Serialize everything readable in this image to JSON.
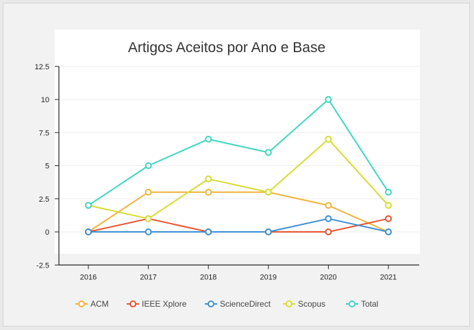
{
  "chart_data": {
    "type": "line",
    "title": "Artigos Aceitos por Ano e Base",
    "xlabel": "",
    "ylabel": "",
    "categories": [
      "2016",
      "2017",
      "2018",
      "2019",
      "2020",
      "2021"
    ],
    "y_ticks": [
      "12.5",
      "10",
      "7.5",
      "5",
      "2.5",
      "0",
      "-2.5"
    ],
    "y_tick_values": [
      12.5,
      10,
      7.5,
      5,
      2.5,
      0,
      -2.5
    ],
    "ylim": [
      -2.5,
      12.5
    ],
    "grid": true,
    "legend_position": "bottom",
    "series": [
      {
        "name": "ACM",
        "color": "#f0b437",
        "values": [
          0,
          3,
          3,
          3,
          2,
          0
        ]
      },
      {
        "name": "IEEE Xplore",
        "color": "#e8522f",
        "values": [
          0,
          1,
          0,
          0,
          0,
          1
        ]
      },
      {
        "name": "ScienceDirect",
        "color": "#3a8fd6",
        "values": [
          0,
          0,
          0,
          0,
          1,
          0
        ]
      },
      {
        "name": "Scopus",
        "color": "#d6dc30",
        "values": [
          2,
          1,
          4,
          3,
          7,
          2
        ]
      },
      {
        "name": "Total",
        "color": "#3dd6c2",
        "values": [
          2,
          5,
          7,
          6,
          10,
          3
        ]
      }
    ]
  }
}
